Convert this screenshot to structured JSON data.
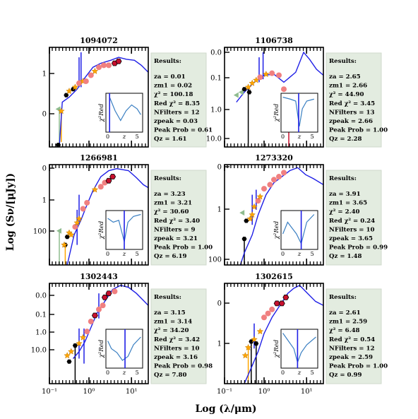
{
  "figure": {
    "xlabel": "Log (λ/μm)",
    "ylabel": "Log (Sν/[μJy])",
    "xticks": [
      "10⁻¹",
      "10⁰",
      "10¹"
    ],
    "inset_ylabel": "χ²Red",
    "inset_xlabel": "z",
    "inset_xticks": [
      "0",
      "5"
    ],
    "results_heading": "Results:"
  },
  "colors": {
    "sed_line": "#1f1fe6",
    "salmon": "#f08080",
    "orange": "#ffa500",
    "darkred": "#c8102e",
    "green": "#8fbc8f",
    "black": "#000000",
    "panel_fill": "#e3ece0",
    "inset_curve": "#3a7fc2"
  },
  "chart_data": [
    {
      "type": "scatter",
      "title": "1094072",
      "yticks": [
        "0",
        "1"
      ],
      "results": [
        "za = 0.01",
        "zm1 = 0.02",
        "χ² = 100.18",
        "Red χ² = 8.35",
        "NFilters = 12",
        "zpeak = 0.03",
        "Peak Prob = 0.61",
        "Qz = 1.61"
      ]
    },
    {
      "type": "scatter",
      "title": "1106738",
      "yticks": [
        "10.0",
        "1.0",
        "0.1",
        "0.0"
      ],
      "results": [
        "za = 2.65",
        "zm1 = 2.66",
        "χ² = 44.90",
        "Red χ² = 3.45",
        "NFilters = 13",
        "zpeak = 2.66",
        "Peak Prob = 1.00",
        "Qz = 2.28"
      ]
    },
    {
      "type": "scatter",
      "title": "1266981",
      "yticks": [
        "100",
        "1",
        "0"
      ],
      "results": [
        "za = 3.23",
        "zm1 = 3.21",
        "χ² = 30.60",
        "Red χ² = 3.40",
        "NFilters = 9",
        "zpeak = 3.21",
        "Peak Prob = 1.00",
        "Qz = 6.19"
      ]
    },
    {
      "type": "scatter",
      "title": "1273320",
      "yticks": [
        "100",
        "1",
        "0"
      ],
      "results": [
        "za = 3.91",
        "zm1 = 3.65",
        "χ² = 2.40",
        "Red χ² = 0.24",
        "NFilters = 10",
        "zpeak = 3.65",
        "Peak Prob = 0.99",
        "Qz = 1.48"
      ]
    },
    {
      "type": "scatter",
      "title": "1302443",
      "yticks": [
        "10.0",
        "1.0",
        "0.1",
        "0.0"
      ],
      "results": [
        "za = 3.15",
        "zm1 = 3.14",
        "χ² = 34.20",
        "Red χ² = 3.42",
        "NFilters = 10",
        "zpeak = 3.16",
        "Peak Prob = 0.98",
        "Qz = 7.80"
      ]
    },
    {
      "type": "scatter",
      "title": "1302615",
      "yticks": [
        "1",
        "0"
      ],
      "results": [
        "za = 2.61",
        "zm1 = 2.59",
        "χ² = 6.48",
        "Red χ² = 0.54",
        "NFilters = 12",
        "zpeak = 2.59",
        "Peak Prob = 1.00",
        "Qz = 0.99"
      ]
    }
  ]
}
